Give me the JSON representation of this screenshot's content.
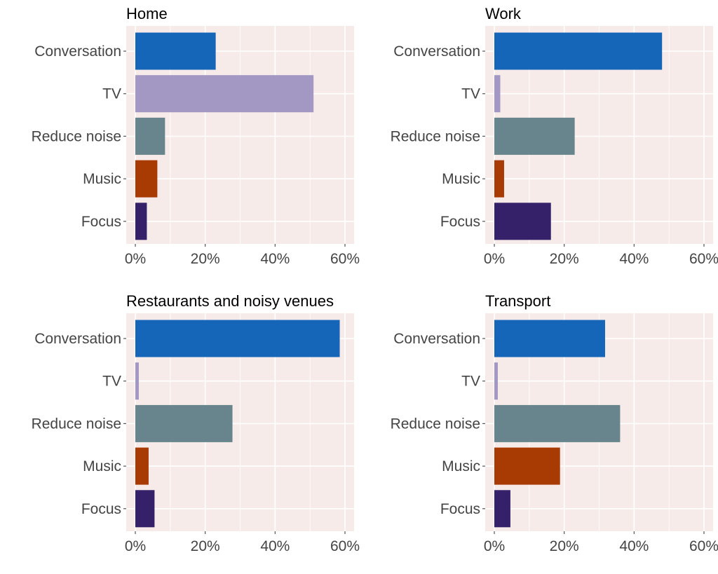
{
  "chart_data": [
    {
      "type": "bar",
      "orientation": "horizontal",
      "title": "Home",
      "categories": [
        "Conversation",
        "TV",
        "Reduce noise",
        "Music",
        "Focus"
      ],
      "values": [
        23,
        51,
        8.5,
        6.3,
        3.3
      ],
      "xlim": [
        0,
        60
      ],
      "xticks": [
        "0%",
        "20%",
        "40%",
        "60%"
      ],
      "grid": true
    },
    {
      "type": "bar",
      "orientation": "horizontal",
      "title": "Work",
      "categories": [
        "Conversation",
        "TV",
        "Reduce noise",
        "Music",
        "Focus"
      ],
      "values": [
        48,
        1.7,
        23,
        2.8,
        16.2
      ],
      "xlim": [
        0,
        60
      ],
      "xticks": [
        "0%",
        "20%",
        "40%",
        "60%"
      ],
      "grid": true
    },
    {
      "type": "bar",
      "orientation": "horizontal",
      "title": "Restaurants and noisy venues",
      "categories": [
        "Conversation",
        "TV",
        "Reduce noise",
        "Music",
        "Focus"
      ],
      "values": [
        58.5,
        1.0,
        27.8,
        3.8,
        5.5
      ],
      "xlim": [
        0,
        60
      ],
      "xticks": [
        "0%",
        "20%",
        "40%",
        "60%"
      ],
      "grid": true
    },
    {
      "type": "bar",
      "orientation": "horizontal",
      "title": "Transport",
      "categories": [
        "Conversation",
        "TV",
        "Reduce noise",
        "Music",
        "Focus"
      ],
      "values": [
        31.7,
        1.0,
        36,
        18.8,
        4.6
      ],
      "xlim": [
        0,
        60
      ],
      "xticks": [
        "0%",
        "20%",
        "40%",
        "60%"
      ],
      "grid": true
    }
  ],
  "colors": {
    "Conversation": "#1565b8",
    "TV": "#a397c4",
    "Reduce noise": "#68858d",
    "Music": "#a83a04",
    "Focus": "#34216a",
    "panel_background": "#f7ebe9",
    "gridline": "#ffffff",
    "label_text": "#444444",
    "title_text": "#000000"
  }
}
